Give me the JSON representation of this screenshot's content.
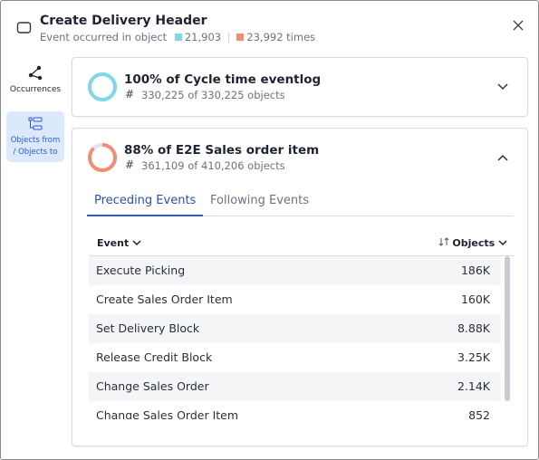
{
  "header": {
    "title": "Create Delivery Header",
    "subtitle": "Event occurred in object",
    "objects_count": "21,903",
    "times_count": "23,992 times"
  },
  "sidebar": [
    {
      "label": "Occurrences"
    },
    {
      "label": "Objects from / Objects to"
    }
  ],
  "cards": [
    {
      "title": "100% of Cycle time eventlog",
      "subtitle": "330,225 of 330,225 objects",
      "percent": 100,
      "color": "#7fd8e4"
    },
    {
      "title": "88% of E2E Sales order item",
      "subtitle": "361,109 of 410,206 objects",
      "percent": 88,
      "color": "#ee8e72"
    }
  ],
  "tabs": [
    "Preceding Events",
    "Following Events"
  ],
  "table": {
    "columns": [
      "Event",
      "Objects"
    ],
    "rows": [
      [
        "Execute Picking",
        "186K"
      ],
      [
        "Create Sales Order Item",
        "160K"
      ],
      [
        "Set Delivery Block",
        "8.88K"
      ],
      [
        "Release Credit Block",
        "3.25K"
      ],
      [
        "Change Sales Order",
        "2.14K"
      ],
      [
        "Change Sales Order Item",
        "852"
      ]
    ]
  }
}
